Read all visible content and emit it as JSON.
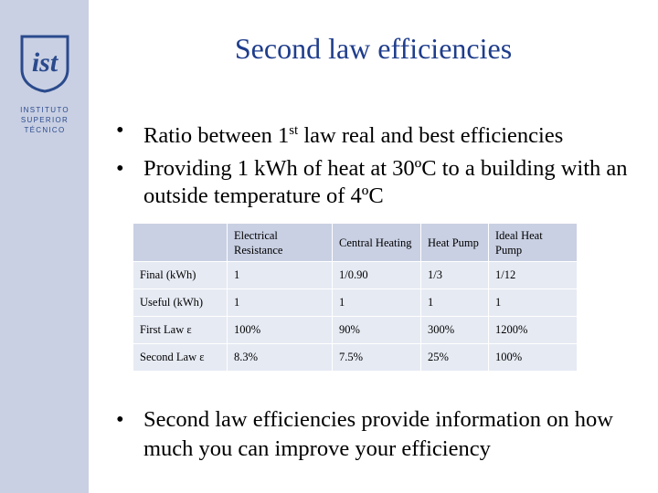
{
  "logo": {
    "mark": "ist",
    "lines": [
      "INSTITUTO",
      "SUPERIOR",
      "TÉCNICO"
    ]
  },
  "title": "Second law efficiencies",
  "bullets": {
    "b1_pre": "Ratio between 1",
    "b1_sup": "st",
    "b1_post": " law real and best efficiencies",
    "b2": "Providing 1 kWh of heat at 30ºC to a building with an outside temperature of 4ºC",
    "b3": "Second law efficiencies provide information on how much you can improve your efficiency"
  },
  "table": {
    "headers": [
      "",
      "Electrical Resistance",
      "Central Heating",
      "Heat Pump",
      "Ideal Heat Pump"
    ],
    "rows": [
      [
        "Final (kWh)",
        "1",
        "1/0.90",
        "1/3",
        "1/12"
      ],
      [
        "Useful (kWh)",
        "1",
        "1",
        "1",
        "1"
      ],
      [
        "First Law ε",
        "100%",
        "90%",
        "300%",
        "1200%"
      ],
      [
        "Second Law ε",
        "8.3%",
        "7.5%",
        "25%",
        "100%"
      ]
    ]
  },
  "colors": {
    "sidebar": "#c9d0e3",
    "title": "#1f3d8c",
    "logo": "#2a4a8c",
    "table_header": "#c9d0e3",
    "table_cell": "#e6eaf3"
  }
}
